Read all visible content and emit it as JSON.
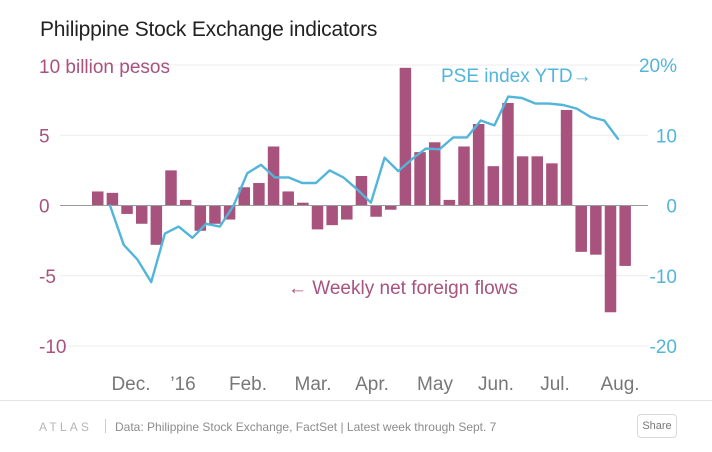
{
  "title": "Philippine Stock Exchange indicators",
  "footer": {
    "brand": "ATLAS",
    "source": "Data: Philippine Stock Exchange, FactSet | Latest week through Sept. 7",
    "share_label": "Share"
  },
  "chart_data": {
    "type": "bar+line",
    "x_tick_labels": [
      "Dec.",
      "’16",
      "Feb.",
      "Mar.",
      "Apr.",
      "May",
      "Jun.",
      "Jul.",
      "Aug."
    ],
    "left_axis": {
      "unit_label": "10 billion pesos",
      "ticks": [
        10,
        5,
        0,
        -5,
        -10
      ],
      "tick_labels": [
        "",
        "5",
        "0",
        "-5",
        "-10"
      ],
      "range": [
        -10,
        10
      ],
      "color": "#a8527e"
    },
    "right_axis": {
      "ticks": [
        20,
        10,
        0,
        -10,
        -20
      ],
      "tick_labels": [
        "20%",
        "10",
        "0",
        "-10",
        "-20"
      ],
      "range": [
        -20,
        20
      ],
      "color": "#52b5da"
    },
    "series": [
      {
        "name": "Weekly net foreign flows",
        "label": "← Weekly net foreign flows",
        "type": "bar",
        "axis": "left",
        "color": "#a8527e",
        "values": [
          1.0,
          0.9,
          -0.6,
          -1.3,
          -2.8,
          2.5,
          0.4,
          -1.8,
          -1.3,
          -1.0,
          1.3,
          1.6,
          4.2,
          1.0,
          0.2,
          -1.7,
          -1.4,
          -1.0,
          2.1,
          -0.8,
          -0.3,
          9.8,
          3.8,
          4.5,
          0.4,
          4.2,
          5.8,
          2.8,
          7.3,
          3.5,
          3.5,
          3.0,
          6.8,
          -3.3,
          -3.5,
          -7.6,
          -4.3
        ]
      },
      {
        "name": "PSE index YTD",
        "label": "PSE index YTD→",
        "type": "line",
        "axis": "right",
        "color": "#52b5da",
        "values": [
          0.0,
          -5.6,
          -7.7,
          -10.9,
          -4.0,
          -3.0,
          -4.6,
          -2.6,
          -3.0,
          0.0,
          4.6,
          5.8,
          4.0,
          4.0,
          3.2,
          3.2,
          5.0,
          4.0,
          2.3,
          0.4,
          6.8,
          4.9,
          6.6,
          8.1,
          8.0,
          9.7,
          9.7,
          12.1,
          11.4,
          15.5,
          15.3,
          14.5,
          14.5,
          14.3,
          13.8,
          12.6,
          12.1,
          9.5
        ]
      }
    ]
  }
}
